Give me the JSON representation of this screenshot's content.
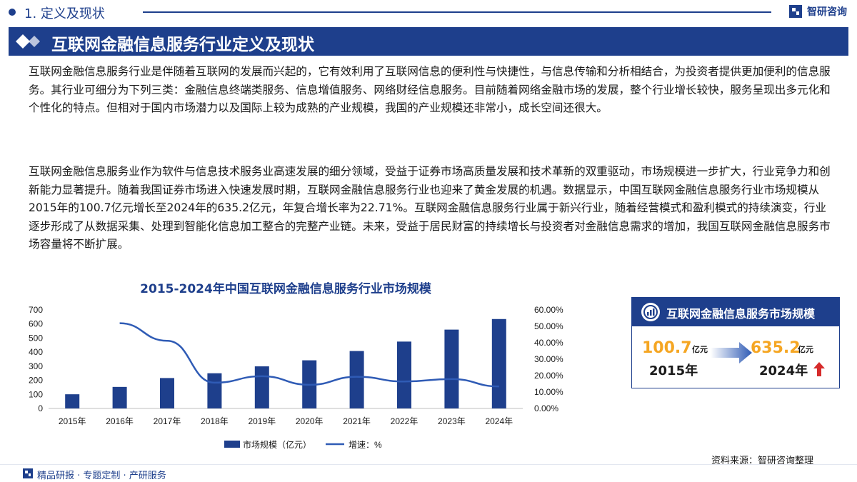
{
  "header": {
    "section": "1. 定义及现状",
    "brand": "智研咨询",
    "title": "互联网金融信息服务行业定义及现状"
  },
  "paragraphs": [
    "互联网金融信息服务行业是伴随着互联网的发展而兴起的，它有效利用了互联网信息的便利性与快捷性，与信息传输和分析相结合，为投资者提供更加便利的信息服务。其行业可细分为下列三类：金融信息终端类服务、信息增值服务、网络财经信息服务。目前随着网络金融市场的发展，整个行业增长较快，服务呈现出多元化和个性化的特点。但相对于国内市场潜力以及国际上较为成熟的产业规模，我国的产业规模还非常小，成长空间还很大。",
    "互联网金融信息服务业作为软件与信息技术服务业高速发展的细分领域，受益于证券市场高质量发展和技术革新的双重驱动，市场规模进一步扩大，行业竞争力和创新能力显著提升。随着我国证券市场进入快速发展时期，互联网金融信息服务行业也迎来了黄金发展的机遇。数据显示，中国互联网金融信息服务行业市场规模从2015年的100.7亿元增长至2024年的635.2亿元，年复合增长率为22.71%。互联网金融信息服务行业属于新兴行业，随着经营模式和盈利模式的持续演变，行业逐步形成了从数据采集、处理到智能化信息加工整合的完整产业链。未来，受益于居民财富的持续增长与投资者对金融信息需求的增加，我国互联网金融信息服务市场容量将不断扩展。"
  ],
  "chart_data": {
    "type": "bar",
    "title": "2015-2024年中国互联网金融信息服务行业市场规模",
    "categories": [
      "2015年",
      "2016年",
      "2017年",
      "2018年",
      "2019年",
      "2020年",
      "2021年",
      "2022年",
      "2023年",
      "2024年"
    ],
    "series": [
      {
        "name": "市场规模（亿元）",
        "type": "bar",
        "axis": "left",
        "values": [
          100.7,
          153,
          216,
          250,
          299,
          342,
          408,
          475,
          560,
          635.2
        ]
      },
      {
        "name": "增速：%",
        "type": "line",
        "axis": "right",
        "values": [
          null,
          51.9,
          41.2,
          15.7,
          19.6,
          14.4,
          19.3,
          16.4,
          17.9,
          13.4
        ]
      }
    ],
    "y_left": {
      "min": 0,
      "max": 700,
      "step": 100,
      "ticks": [
        "0",
        "100",
        "200",
        "300",
        "400",
        "500",
        "600",
        "700"
      ]
    },
    "y_right": {
      "min": 0,
      "max": 60,
      "step": 10,
      "ticks": [
        "0.00%",
        "10.00%",
        "20.00%",
        "30.00%",
        "40.00%",
        "50.00%",
        "60.00%"
      ]
    },
    "legend_position": "bottom",
    "grid": false,
    "colors": {
      "bar": "#1e3f8c",
      "line": "#2f5bb5"
    }
  },
  "card": {
    "title": "互联网金融信息服务市场规模",
    "start_value": "100.7",
    "start_unit": "亿元",
    "start_year": "2015年",
    "end_value": "635.2",
    "end_unit": "亿元",
    "end_year": "2024年"
  },
  "source": "资料来源：智研咨询整理",
  "footer": "精品研报 · 专题定制 · 产研服务",
  "colors": {
    "brand": "#1e3f8c",
    "accent": "#f5a623",
    "up": "#d62b2b"
  }
}
